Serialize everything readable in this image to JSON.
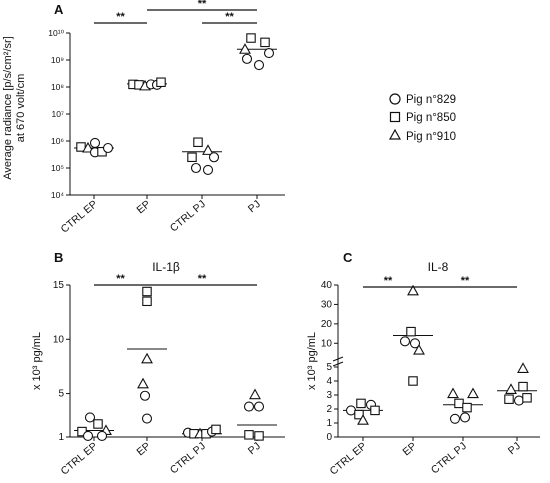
{
  "chart_data": [
    {
      "panel": "A",
      "type": "scatter",
      "title": "",
      "ylabel_lines": [
        "Average radiance [p/s/cm²/sr]",
        "at 670 volt/cm"
      ],
      "scale": "log10",
      "ylim": [
        10000,
        10000000000
      ],
      "yticks": [
        {
          "value": 10000,
          "label": "10⁴"
        },
        {
          "value": 100000,
          "label": "10⁵"
        },
        {
          "value": 1000000,
          "label": "10⁶"
        },
        {
          "value": 10000000,
          "label": "10⁷"
        },
        {
          "value": 100000000,
          "label": "10⁸"
        },
        {
          "value": 1000000000,
          "label": "10⁹"
        },
        {
          "value": 10000000000,
          "label": "10¹⁰"
        }
      ],
      "categories": [
        "CTRL EP",
        "EP",
        "CTRL PJ",
        "PJ"
      ],
      "medians": [
        550000,
        130000000,
        400000,
        2500000000
      ],
      "points": [
        {
          "cat": 0,
          "dx": -13,
          "shape": "square",
          "y": 600000
        },
        {
          "cat": 0,
          "dx": -6,
          "shape": "triangle",
          "y": 550000
        },
        {
          "cat": 0,
          "dx": 1,
          "shape": "circle",
          "y": 850000
        },
        {
          "cat": 0,
          "dx": 1,
          "shape": "circle",
          "y": 380000
        },
        {
          "cat": 0,
          "dx": 8,
          "shape": "square",
          "y": 400000
        },
        {
          "cat": 0,
          "dx": 14,
          "shape": "circle",
          "y": 550000
        },
        {
          "cat": 1,
          "dx": -14,
          "shape": "square",
          "y": 125000000
        },
        {
          "cat": 1,
          "dx": -8,
          "shape": "square",
          "y": 120000000
        },
        {
          "cat": 1,
          "dx": -2,
          "shape": "triangle",
          "y": 110000000
        },
        {
          "cat": 1,
          "dx": 4,
          "shape": "circle",
          "y": 125000000
        },
        {
          "cat": 1,
          "dx": 10,
          "shape": "circle",
          "y": 120000000
        },
        {
          "cat": 1,
          "dx": 14,
          "shape": "square",
          "y": 150000000
        },
        {
          "cat": 2,
          "dx": -4,
          "shape": "square",
          "y": 900000
        },
        {
          "cat": 2,
          "dx": 6,
          "shape": "triangle",
          "y": 450000
        },
        {
          "cat": 2,
          "dx": -10,
          "shape": "square",
          "y": 250000
        },
        {
          "cat": 2,
          "dx": 12,
          "shape": "circle",
          "y": 250000
        },
        {
          "cat": 2,
          "dx": -6,
          "shape": "circle",
          "y": 100000
        },
        {
          "cat": 2,
          "dx": 6,
          "shape": "circle",
          "y": 85000
        },
        {
          "cat": 3,
          "dx": -6,
          "shape": "square",
          "y": 6500000000
        },
        {
          "cat": 3,
          "dx": 8,
          "shape": "square",
          "y": 4500000000
        },
        {
          "cat": 3,
          "dx": -12,
          "shape": "triangle",
          "y": 2500000000
        },
        {
          "cat": 3,
          "dx": 12,
          "shape": "circle",
          "y": 1800000000
        },
        {
          "cat": 3,
          "dx": -10,
          "shape": "circle",
          "y": 1100000000
        },
        {
          "cat": 3,
          "dx": 2,
          "shape": "circle",
          "y": 650000000
        }
      ],
      "significance": [
        {
          "from": 0,
          "to": 1,
          "label": "**"
        },
        {
          "from": 1,
          "to": 3,
          "label": "**"
        },
        {
          "from": 2,
          "to": 3,
          "label": "**"
        }
      ]
    },
    {
      "panel": "B",
      "type": "scatter",
      "title": "IL-1β",
      "ylabel": "x 10³ pg/mL",
      "ylim": [
        1,
        15
      ],
      "yticks": [
        {
          "value": 1,
          "label": "1"
        },
        {
          "value": 5,
          "label": "5"
        },
        {
          "value": 10,
          "label": "10"
        },
        {
          "value": 15,
          "label": "15"
        }
      ],
      "categories": [
        "CTRL EP",
        "EP",
        "CTRL PJ",
        "PJ"
      ],
      "medians": [
        1.6,
        9.1,
        1.3,
        2.1
      ],
      "points": [
        {
          "cat": 0,
          "dx": -12,
          "shape": "square",
          "y": 1.5
        },
        {
          "cat": 0,
          "dx": -4,
          "shape": "circle",
          "y": 2.8
        },
        {
          "cat": 0,
          "dx": 4,
          "shape": "square",
          "y": 2.2
        },
        {
          "cat": 0,
          "dx": 12,
          "shape": "triangle",
          "y": 1.6
        },
        {
          "cat": 0,
          "dx": -6,
          "shape": "circle",
          "y": 1.1
        },
        {
          "cat": 0,
          "dx": 8,
          "shape": "circle",
          "y": 1.1
        },
        {
          "cat": 1,
          "dx": 0,
          "shape": "square",
          "y": 14.4
        },
        {
          "cat": 1,
          "dx": 0,
          "shape": "square",
          "y": 13.5
        },
        {
          "cat": 1,
          "dx": 0,
          "shape": "triangle",
          "y": 8.2
        },
        {
          "cat": 1,
          "dx": -4,
          "shape": "triangle",
          "y": 5.9
        },
        {
          "cat": 1,
          "dx": -2,
          "shape": "circle",
          "y": 4.8
        },
        {
          "cat": 1,
          "dx": 0,
          "shape": "circle",
          "y": 2.7
        },
        {
          "cat": 2,
          "dx": -14,
          "shape": "circle",
          "y": 1.4
        },
        {
          "cat": 2,
          "dx": -8,
          "shape": "square",
          "y": 1.3
        },
        {
          "cat": 2,
          "dx": -2,
          "shape": "triangle",
          "y": 1.3
        },
        {
          "cat": 2,
          "dx": 4,
          "shape": "square",
          "y": 1.3
        },
        {
          "cat": 2,
          "dx": 10,
          "shape": "circle",
          "y": 1.5
        },
        {
          "cat": 2,
          "dx": 14,
          "shape": "square",
          "y": 1.7
        },
        {
          "cat": 3,
          "dx": -2,
          "shape": "triangle",
          "y": 4.9
        },
        {
          "cat": 3,
          "dx": -8,
          "shape": "circle",
          "y": 3.8
        },
        {
          "cat": 3,
          "dx": 2,
          "shape": "circle",
          "y": 3.8
        },
        {
          "cat": 3,
          "dx": -8,
          "shape": "square",
          "y": 1.2
        },
        {
          "cat": 3,
          "dx": 2,
          "shape": "square",
          "y": 1.1
        }
      ],
      "significance": [
        {
          "from": 0,
          "to": 1,
          "label": "**"
        },
        {
          "from": 1,
          "to": 3,
          "label": "**"
        }
      ]
    },
    {
      "panel": "C",
      "type": "scatter",
      "title": "IL-8",
      "ylabel": "x 10³ pg/mL",
      "broken_axis": {
        "lower": [
          0,
          5
        ],
        "upper": [
          5,
          40
        ]
      },
      "yticks": [
        {
          "value": 0,
          "label": "0"
        },
        {
          "value": 1,
          "label": "1"
        },
        {
          "value": 2,
          "label": "2"
        },
        {
          "value": 3,
          "label": "3"
        },
        {
          "value": 4,
          "label": "4"
        },
        {
          "value": 5,
          "label": "5"
        },
        {
          "value": 10,
          "label": "10"
        },
        {
          "value": 20,
          "label": "20"
        },
        {
          "value": 30,
          "label": "30"
        },
        {
          "value": 40,
          "label": "40"
        }
      ],
      "categories": [
        "CTRL EP",
        "EP",
        "CTRL PJ",
        "PJ"
      ],
      "medians": [
        1.9,
        14,
        2.3,
        3.3
      ],
      "points": [
        {
          "cat": 0,
          "dx": -12,
          "shape": "circle",
          "y": 1.9
        },
        {
          "cat": 0,
          "dx": -2,
          "shape": "square",
          "y": 2.4
        },
        {
          "cat": 0,
          "dx": 8,
          "shape": "circle",
          "y": 2.3
        },
        {
          "cat": 0,
          "dx": 12,
          "shape": "square",
          "y": 1.9
        },
        {
          "cat": 0,
          "dx": -4,
          "shape": "square",
          "y": 1.6
        },
        {
          "cat": 0,
          "dx": 0,
          "shape": "triangle",
          "y": 1.2
        },
        {
          "cat": 1,
          "dx": 0,
          "shape": "triangle",
          "y": 37
        },
        {
          "cat": 1,
          "dx": -2,
          "shape": "square",
          "y": 16
        },
        {
          "cat": 1,
          "dx": -8,
          "shape": "circle",
          "y": 11
        },
        {
          "cat": 1,
          "dx": 2,
          "shape": "circle",
          "y": 10
        },
        {
          "cat": 1,
          "dx": 6,
          "shape": "triangle",
          "y": 6.5
        },
        {
          "cat": 1,
          "dx": 0,
          "shape": "square",
          "y": 4
        },
        {
          "cat": 2,
          "dx": -10,
          "shape": "triangle",
          "y": 3.1
        },
        {
          "cat": 2,
          "dx": 10,
          "shape": "triangle",
          "y": 3.1
        },
        {
          "cat": 2,
          "dx": -4,
          "shape": "square",
          "y": 2.4
        },
        {
          "cat": 2,
          "dx": 4,
          "shape": "square",
          "y": 2.1
        },
        {
          "cat": 2,
          "dx": -8,
          "shape": "circle",
          "y": 1.3
        },
        {
          "cat": 2,
          "dx": 2,
          "shape": "circle",
          "y": 1.4
        },
        {
          "cat": 3,
          "dx": 6,
          "shape": "triangle",
          "y": 4.9
        },
        {
          "cat": 3,
          "dx": 6,
          "shape": "square",
          "y": 3.6
        },
        {
          "cat": 3,
          "dx": -6,
          "shape": "triangle",
          "y": 3.4
        },
        {
          "cat": 3,
          "dx": -8,
          "shape": "square",
          "y": 2.7
        },
        {
          "cat": 3,
          "dx": 2,
          "shape": "circle",
          "y": 2.6
        },
        {
          "cat": 3,
          "dx": 10,
          "shape": "square",
          "y": 2.8
        }
      ],
      "significance": [
        {
          "from": 0,
          "to": 1,
          "label": "**"
        },
        {
          "from": 1,
          "to": 3,
          "label": "**"
        }
      ]
    }
  ],
  "legend": {
    "placement": "right",
    "items": [
      {
        "shape": "circle",
        "label": "Pig n°829"
      },
      {
        "shape": "square",
        "label": "Pig n°850"
      },
      {
        "shape": "triangle",
        "label": "Pig n°910"
      }
    ]
  },
  "panel_letters": [
    "A",
    "B",
    "C"
  ],
  "colors": {
    "ink": "#111111",
    "marker_fill": "#ffffff"
  }
}
